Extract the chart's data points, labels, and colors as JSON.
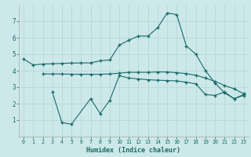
{
  "xlabel": "Humidex (Indice chaleur)",
  "bg_color": "#cce8e8",
  "grid_color": "#b8d8d8",
  "line_color": "#1a6b6b",
  "x_values": [
    0,
    1,
    2,
    3,
    4,
    5,
    6,
    7,
    8,
    9,
    10,
    11,
    12,
    13,
    14,
    15,
    16,
    17,
    18,
    19,
    20,
    21,
    22,
    23
  ],
  "line1": [
    4.7,
    4.35,
    4.4,
    4.42,
    4.44,
    4.46,
    4.47,
    4.47,
    4.6,
    4.65,
    5.55,
    5.85,
    6.1,
    6.1,
    6.6,
    7.5,
    7.4,
    5.5,
    5.0,
    4.0,
    3.25,
    2.65,
    2.3,
    2.55
  ],
  "line2": [
    null,
    null,
    3.8,
    3.8,
    3.8,
    3.78,
    3.78,
    3.78,
    3.78,
    3.8,
    3.85,
    3.9,
    3.9,
    3.9,
    3.92,
    3.92,
    3.88,
    3.82,
    3.72,
    3.55,
    3.35,
    3.1,
    2.9,
    2.6
  ],
  "line3": [
    null,
    null,
    null,
    2.7,
    0.85,
    0.75,
    null,
    2.3,
    1.4,
    2.2,
    3.7,
    3.55,
    3.5,
    3.45,
    3.42,
    3.4,
    3.38,
    3.3,
    3.2,
    2.55,
    2.5,
    2.7,
    2.3,
    2.5
  ],
  "ylim": [
    0,
    8
  ],
  "xlim": [
    -0.5,
    23.5
  ],
  "yticks": [
    1,
    2,
    3,
    4,
    5,
    6,
    7
  ],
  "xticks": [
    0,
    1,
    2,
    3,
    4,
    5,
    6,
    7,
    8,
    9,
    10,
    11,
    12,
    13,
    14,
    15,
    16,
    17,
    18,
    19,
    20,
    21,
    22,
    23
  ]
}
